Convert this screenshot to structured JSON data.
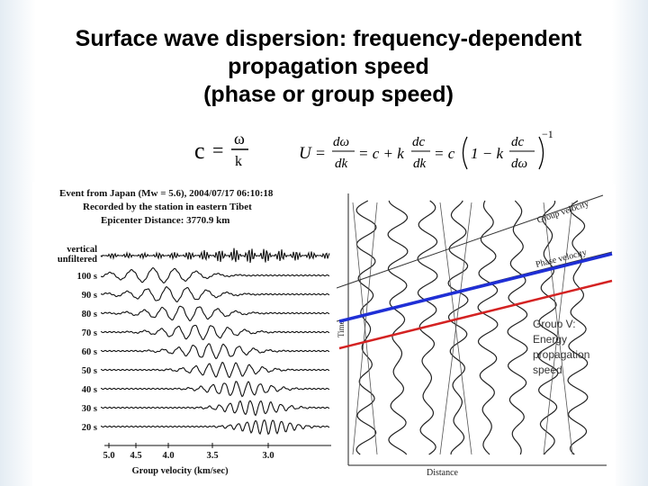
{
  "slide": {
    "title_lines": [
      "Surface wave dispersion: frequency-dependent",
      "propagation speed",
      "(phase or group speed)"
    ]
  },
  "equations": {
    "c": {
      "lhs": "c",
      "eq": "=",
      "num": "ω",
      "den": "k"
    },
    "U": {
      "lhs": "U",
      "eq": "=",
      "num1": "dω",
      "den1": "dk",
      "plus": "= c + k",
      "num2": "dc",
      "den2": "dk",
      "eq2": "= c",
      "one": "1 − k",
      "num3": "dc",
      "den3": "dω",
      "exp": "−1"
    }
  },
  "seismogram": {
    "header": [
      "Event from Japan (Mw = 5.6), 2004/07/17 06:10:18",
      "Recorded by the station in eastern Tibet",
      "Epicenter Distance: 3770.9 km"
    ],
    "trace_labels": [
      "vertical",
      "unfiltered",
      "100 s",
      "90 s",
      "80 s",
      "70 s",
      "60 s",
      "50 s",
      "40 s",
      "30 s",
      "20 s"
    ],
    "axis_ticks": [
      "5.0",
      "4.5",
      "4.0",
      "3.5",
      "3.0"
    ],
    "axis_label": "Group velocity (km/sec)"
  },
  "wave_diagram": {
    "y_label": "Time",
    "x_label": "Distance",
    "line_labels": [
      "Group velocity",
      "Phase velocity"
    ],
    "annotation": [
      "Group V:",
      "Energy",
      "propagation",
      "speed"
    ],
    "colors": {
      "phase_line": "#1f2fd6",
      "group_line": "#d42222"
    }
  }
}
